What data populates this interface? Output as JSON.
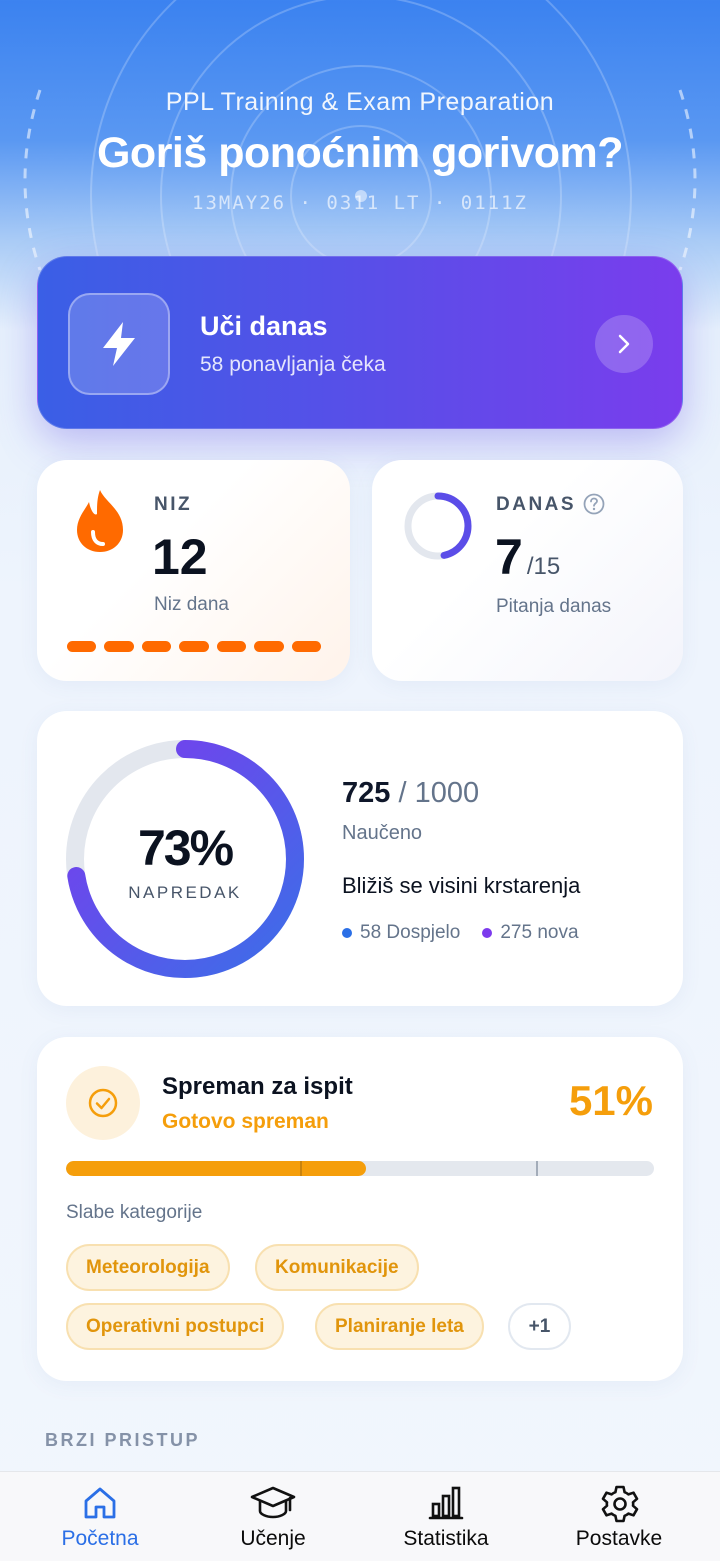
{
  "header": {
    "subtitle": "PPL Training & Exam Preparation",
    "title": "Goriš ponoćnim gorivom?",
    "clock": "13MAY26 · 0311 LT · 0111Z"
  },
  "learn": {
    "title": "Uči danas",
    "subtitle": "58 ponavljanja čeka"
  },
  "streak": {
    "label": "NIZ",
    "value": "12",
    "caption": "Niz dana",
    "segments": 7
  },
  "today": {
    "label": "DANAS",
    "value": "7",
    "total": "/15",
    "caption": "Pitanja danas",
    "fraction": 0.4667
  },
  "progress": {
    "percent": "73%",
    "ring_label": "NAPREDAK",
    "fraction": 0.725,
    "learned": "725",
    "total": "/ 1000",
    "learned_caption": "Naučeno",
    "message": "Bližiš se visini krstarenja",
    "due": "58 Dospjelo",
    "new": "275 nova"
  },
  "readiness": {
    "title": "Spreman za ispit",
    "status": "Gotovo spreman",
    "percent": "51%",
    "fraction": 0.51,
    "weak_label": "Slabe kategorije",
    "chips": [
      "Meteorologija",
      "Komunikacije",
      "Operativni postupci",
      "Planiranje leta"
    ],
    "more": "+1"
  },
  "quick_access_label": "BRZI PRISTUP",
  "tabs": [
    {
      "label": "Početna",
      "icon": "home-icon"
    },
    {
      "label": "Učenje",
      "icon": "graduation-cap-icon"
    },
    {
      "label": "Statistika",
      "icon": "bar-chart-icon"
    },
    {
      "label": "Postavke",
      "icon": "gear-icon"
    }
  ],
  "colors": {
    "accent_blue": "#2b6fe6",
    "purple": "#7c3aed",
    "streak_orange": "#ff6a00",
    "ready_orange": "#f59e0b"
  }
}
